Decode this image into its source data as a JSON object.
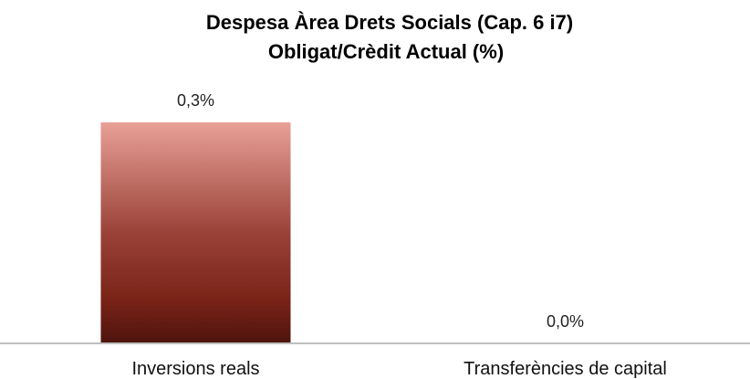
{
  "chart_data": {
    "type": "bar",
    "title": "Despesa Àrea Drets Socials (Cap. 6 i7)",
    "subtitle": "Obligat/Crèdit Actual (%)",
    "categories": [
      "Inversions reals",
      "Transferències de capital"
    ],
    "values": [
      0.3,
      0.0
    ],
    "value_labels": [
      "0,3%",
      "0,0%"
    ],
    "unit": "%",
    "ylim": [
      0,
      0.3
    ],
    "grid": false,
    "legend": "none",
    "colors": {
      "bar_top": "#e8a097",
      "bar_mid": "#9a4238",
      "bar_low": "#7a2317",
      "bar_bottom": "#4e140e",
      "axis": "#bfbfbf"
    }
  }
}
